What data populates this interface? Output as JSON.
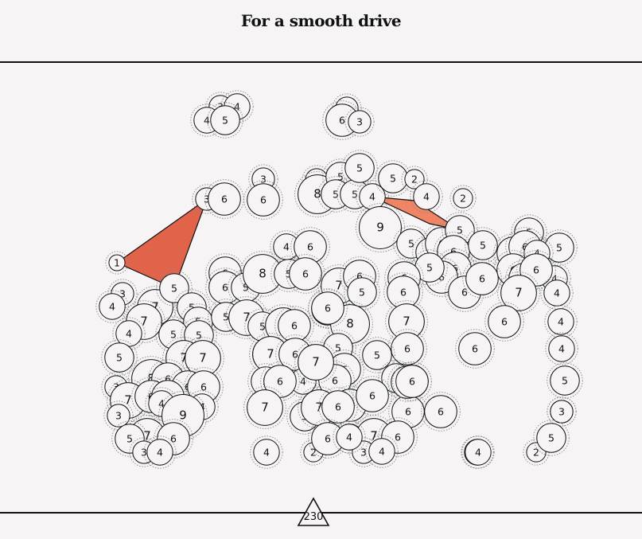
{
  "page": {
    "title": "For a smooth drive"
  },
  "footer": {
    "badge": "230"
  },
  "colors": {
    "background": "#f6f4f5",
    "highlight_fill": "#e1634a",
    "highlight_fill_light": "#f08566",
    "line": "#111111",
    "ring": "#888888"
  },
  "nodes": [
    {
      "v": 3
    },
    {
      "v": 4
    },
    {
      "v": 4
    },
    {
      "v": 5
    },
    {
      "v": 3
    },
    {
      "v": 6
    },
    {
      "v": 3
    },
    {
      "v": 3
    },
    {
      "v": 6
    },
    {
      "v": 3
    },
    {
      "v": 6
    },
    {
      "v": 3
    },
    {
      "v": 8
    },
    {
      "v": 5
    },
    {
      "v": 5
    },
    {
      "v": 5
    },
    {
      "v": 5
    },
    {
      "v": 4
    },
    {
      "v": 5
    },
    {
      "v": 2
    },
    {
      "v": 4
    },
    {
      "v": 2
    },
    {
      "v": 9
    },
    {
      "v": 1
    },
    {
      "v": 5
    },
    {
      "v": 5
    },
    {
      "v": 6
    },
    {
      "v": 5
    },
    {
      "v": 6
    },
    {
      "v": 5
    },
    {
      "v": 5
    },
    {
      "v": 6
    },
    {
      "v": 6
    },
    {
      "v": 5
    },
    {
      "v": 6
    },
    {
      "v": 4
    },
    {
      "v": 6
    },
    {
      "v": 6
    },
    {
      "v": 5
    },
    {
      "v": 4
    },
    {
      "v": 6
    },
    {
      "v": 5
    },
    {
      "v": 4
    },
    {
      "v": 2
    },
    {
      "v": 4
    },
    {
      "v": 6
    },
    {
      "v": 6
    },
    {
      "v": 6
    },
    {
      "v": 5
    },
    {
      "v": 8
    },
    {
      "v": 5
    },
    {
      "v": 6
    },
    {
      "v": 7
    },
    {
      "v": 6
    },
    {
      "v": 5
    },
    {
      "v": 6
    },
    {
      "v": 8
    },
    {
      "v": 6
    },
    {
      "v": 6
    },
    {
      "v": 7
    },
    {
      "v": 6
    },
    {
      "v": 6
    },
    {
      "v": 6
    },
    {
      "v": 7
    },
    {
      "v": 6
    },
    {
      "v": 3
    },
    {
      "v": 4
    },
    {
      "v": 7
    },
    {
      "v": 7
    },
    {
      "v": 5
    },
    {
      "v": 5
    },
    {
      "v": 4
    },
    {
      "v": 5
    },
    {
      "v": 5
    },
    {
      "v": 5
    },
    {
      "v": 5
    },
    {
      "v": 7
    },
    {
      "v": 7
    },
    {
      "v": 7
    },
    {
      "v": 5
    },
    {
      "v": 7
    },
    {
      "v": 5
    },
    {
      "v": 7
    },
    {
      "v": 6
    },
    {
      "v": 7
    },
    {
      "v": 6
    },
    {
      "v": 5
    },
    {
      "v": 5
    },
    {
      "v": 6
    },
    {
      "v": 6
    },
    {
      "v": 4
    },
    {
      "v": 4
    },
    {
      "v": 5
    },
    {
      "v": 8
    },
    {
      "v": 6
    },
    {
      "v": 6
    },
    {
      "v": 6
    },
    {
      "v": 3
    },
    {
      "v": 7
    },
    {
      "v": 6
    },
    {
      "v": 6
    },
    {
      "v": 4
    },
    {
      "v": 3
    },
    {
      "v": 5
    },
    {
      "v": 6
    },
    {
      "v": 4
    },
    {
      "v": 6
    },
    {
      "v": 6
    },
    {
      "v": 6
    },
    {
      "v": 7
    },
    {
      "v": 9
    },
    {
      "v": 5
    },
    {
      "v": 7
    },
    {
      "v": 6
    },
    {
      "v": 6
    },
    {
      "v": 3
    },
    {
      "v": 7
    },
    {
      "v": 6
    },
    {
      "v": 5
    },
    {
      "v": 6
    },
    {
      "v": 4
    },
    {
      "v": 6
    },
    {
      "v": 5
    },
    {
      "v": 4
    },
    {
      "v": 7
    },
    {
      "v": 6
    },
    {
      "v": 3
    },
    {
      "v": 4
    },
    {
      "v": 4
    },
    {
      "v": 3
    },
    {
      "v": 4
    },
    {
      "v": 2
    },
    {
      "v": 6
    },
    {
      "v": 4
    },
    {
      "v": 7
    },
    {
      "v": 6
    },
    {
      "v": 3
    },
    {
      "v": 4
    },
    {
      "v": 4
    },
    {
      "v": 2
    },
    {
      "v": 5
    },
    {
      "v": 6
    },
    {
      "v": 6
    }
  ]
}
